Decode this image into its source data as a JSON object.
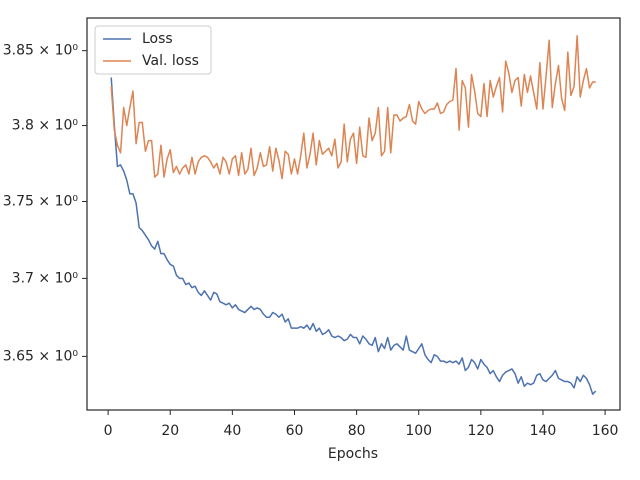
{
  "chart_data": {
    "type": "line",
    "xlabel": "Epochs",
    "log_y": true,
    "legend": "upper left",
    "x": [
      1,
      2,
      3,
      4,
      5,
      6,
      7,
      8,
      9,
      10,
      11,
      12,
      13,
      14,
      15,
      16,
      17,
      18,
      19,
      20,
      21,
      22,
      23,
      24,
      25,
      26,
      27,
      28,
      29,
      30,
      31,
      32,
      33,
      34,
      35,
      36,
      37,
      38,
      39,
      40,
      41,
      42,
      43,
      44,
      45,
      46,
      47,
      48,
      49,
      50,
      51,
      52,
      53,
      54,
      55,
      56,
      57,
      58,
      59,
      60,
      61,
      62,
      63,
      64,
      65,
      66,
      67,
      68,
      69,
      70,
      71,
      72,
      73,
      74,
      75,
      76,
      77,
      78,
      79,
      80,
      81,
      82,
      83,
      84,
      85,
      86,
      87,
      88,
      89,
      90,
      91,
      92,
      93,
      94,
      95,
      96,
      97,
      98,
      99,
      100,
      101,
      102,
      103,
      104,
      105,
      106,
      107,
      108,
      109,
      110,
      111,
      112,
      113,
      114,
      115,
      116,
      117,
      118,
      119,
      120,
      121,
      122,
      123,
      124,
      125,
      126,
      127,
      128,
      129,
      130,
      131,
      132,
      133,
      134,
      135,
      136,
      137,
      138,
      139,
      140,
      141,
      142,
      143,
      144,
      145,
      146,
      147,
      148,
      149,
      150,
      151,
      152,
      153,
      154,
      155,
      156,
      157
    ],
    "series": [
      {
        "name": "Loss",
        "color": "#4c72b0",
        "values": [
          3.832,
          3.8,
          3.773,
          3.774,
          3.77,
          3.764,
          3.755,
          3.755,
          3.749,
          3.733,
          3.731,
          3.728,
          3.725,
          3.721,
          3.719,
          3.724,
          3.716,
          3.716,
          3.712,
          3.709,
          3.708,
          3.702,
          3.7,
          3.7,
          3.696,
          3.697,
          3.694,
          3.695,
          3.691,
          3.689,
          3.692,
          3.689,
          3.686,
          3.691,
          3.69,
          3.685,
          3.684,
          3.683,
          3.684,
          3.681,
          3.683,
          3.68,
          3.679,
          3.678,
          3.68,
          3.682,
          3.68,
          3.681,
          3.68,
          3.677,
          3.675,
          3.675,
          3.678,
          3.677,
          3.675,
          3.677,
          3.672,
          3.674,
          3.668,
          3.668,
          3.668,
          3.669,
          3.668,
          3.67,
          3.667,
          3.671,
          3.666,
          3.668,
          3.664,
          3.665,
          3.667,
          3.663,
          3.662,
          3.663,
          3.662,
          3.66,
          3.661,
          3.664,
          3.662,
          3.662,
          3.658,
          3.663,
          3.661,
          3.658,
          3.657,
          3.662,
          3.653,
          3.658,
          3.655,
          3.662,
          3.654,
          3.657,
          3.658,
          3.656,
          3.654,
          3.663,
          3.654,
          3.653,
          3.652,
          3.655,
          3.658,
          3.651,
          3.648,
          3.646,
          3.651,
          3.65,
          3.647,
          3.647,
          3.646,
          3.647,
          3.646,
          3.647,
          3.645,
          3.649,
          3.641,
          3.643,
          3.648,
          3.646,
          3.642,
          3.648,
          3.645,
          3.643,
          3.639,
          3.641,
          3.637,
          3.634,
          3.638,
          3.64,
          3.641,
          3.642,
          3.639,
          3.633,
          3.637,
          3.631,
          3.633,
          3.632,
          3.633,
          3.638,
          3.639,
          3.635,
          3.634,
          3.636,
          3.638,
          3.641,
          3.636,
          3.635,
          3.634,
          3.634,
          3.633,
          3.63,
          3.637,
          3.634,
          3.638,
          3.636,
          3.632,
          3.626,
          3.628
        ]
      },
      {
        "name": "Val. loss",
        "color": "#dd8452",
        "values": [
          3.826,
          3.797,
          3.787,
          3.782,
          3.812,
          3.8,
          3.812,
          3.823,
          3.788,
          3.802,
          3.802,
          3.783,
          3.79,
          3.79,
          3.766,
          3.768,
          3.787,
          3.766,
          3.778,
          3.784,
          3.769,
          3.773,
          3.768,
          3.772,
          3.774,
          3.768,
          3.779,
          3.768,
          3.776,
          3.779,
          3.78,
          3.779,
          3.776,
          3.772,
          3.775,
          3.768,
          3.779,
          3.776,
          3.768,
          3.778,
          3.78,
          3.767,
          3.782,
          3.768,
          3.771,
          3.785,
          3.767,
          3.772,
          3.782,
          3.773,
          3.774,
          3.786,
          3.77,
          3.785,
          3.777,
          3.765,
          3.783,
          3.781,
          3.768,
          3.778,
          3.768,
          3.78,
          3.795,
          3.772,
          3.781,
          3.795,
          3.774,
          3.79,
          3.781,
          3.783,
          3.785,
          3.78,
          3.791,
          3.772,
          3.776,
          3.801,
          3.776,
          3.791,
          3.795,
          3.775,
          3.799,
          3.78,
          3.779,
          3.805,
          3.79,
          3.795,
          3.812,
          3.78,
          3.783,
          3.812,
          3.782,
          3.807,
          3.807,
          3.803,
          3.805,
          3.806,
          3.814,
          3.803,
          3.801,
          3.816,
          3.811,
          3.808,
          3.81,
          3.811,
          3.811,
          3.815,
          3.808,
          3.809,
          3.814,
          3.816,
          3.817,
          3.838,
          3.797,
          3.83,
          3.825,
          3.799,
          3.834,
          3.823,
          3.808,
          3.806,
          3.828,
          3.806,
          3.83,
          3.819,
          3.826,
          3.832,
          3.809,
          3.843,
          3.835,
          3.822,
          3.83,
          3.832,
          3.813,
          3.834,
          3.822,
          3.833,
          3.822,
          3.811,
          3.842,
          3.811,
          3.833,
          3.857,
          3.812,
          3.828,
          3.84,
          3.818,
          3.81,
          3.849,
          3.82,
          3.826,
          3.86,
          3.819,
          3.83,
          3.838,
          3.825,
          3.829,
          3.829
        ]
      }
    ],
    "xlim": [
      -6.8,
      164.8
    ],
    "xticks": [
      0,
      20,
      40,
      60,
      80,
      100,
      120,
      140,
      160
    ],
    "ylim": [
      3.616,
      3.872
    ],
    "yticks": [
      {
        "value": 3.65,
        "label": "3.65 × 10⁰"
      },
      {
        "value": 3.7,
        "label": "3.7 × 10⁰"
      },
      {
        "value": 3.75,
        "label": "3.75 × 10⁰"
      },
      {
        "value": 3.8,
        "label": "3.8 × 10⁰"
      },
      {
        "value": 3.85,
        "label": "3.85 × 10⁰"
      }
    ]
  }
}
